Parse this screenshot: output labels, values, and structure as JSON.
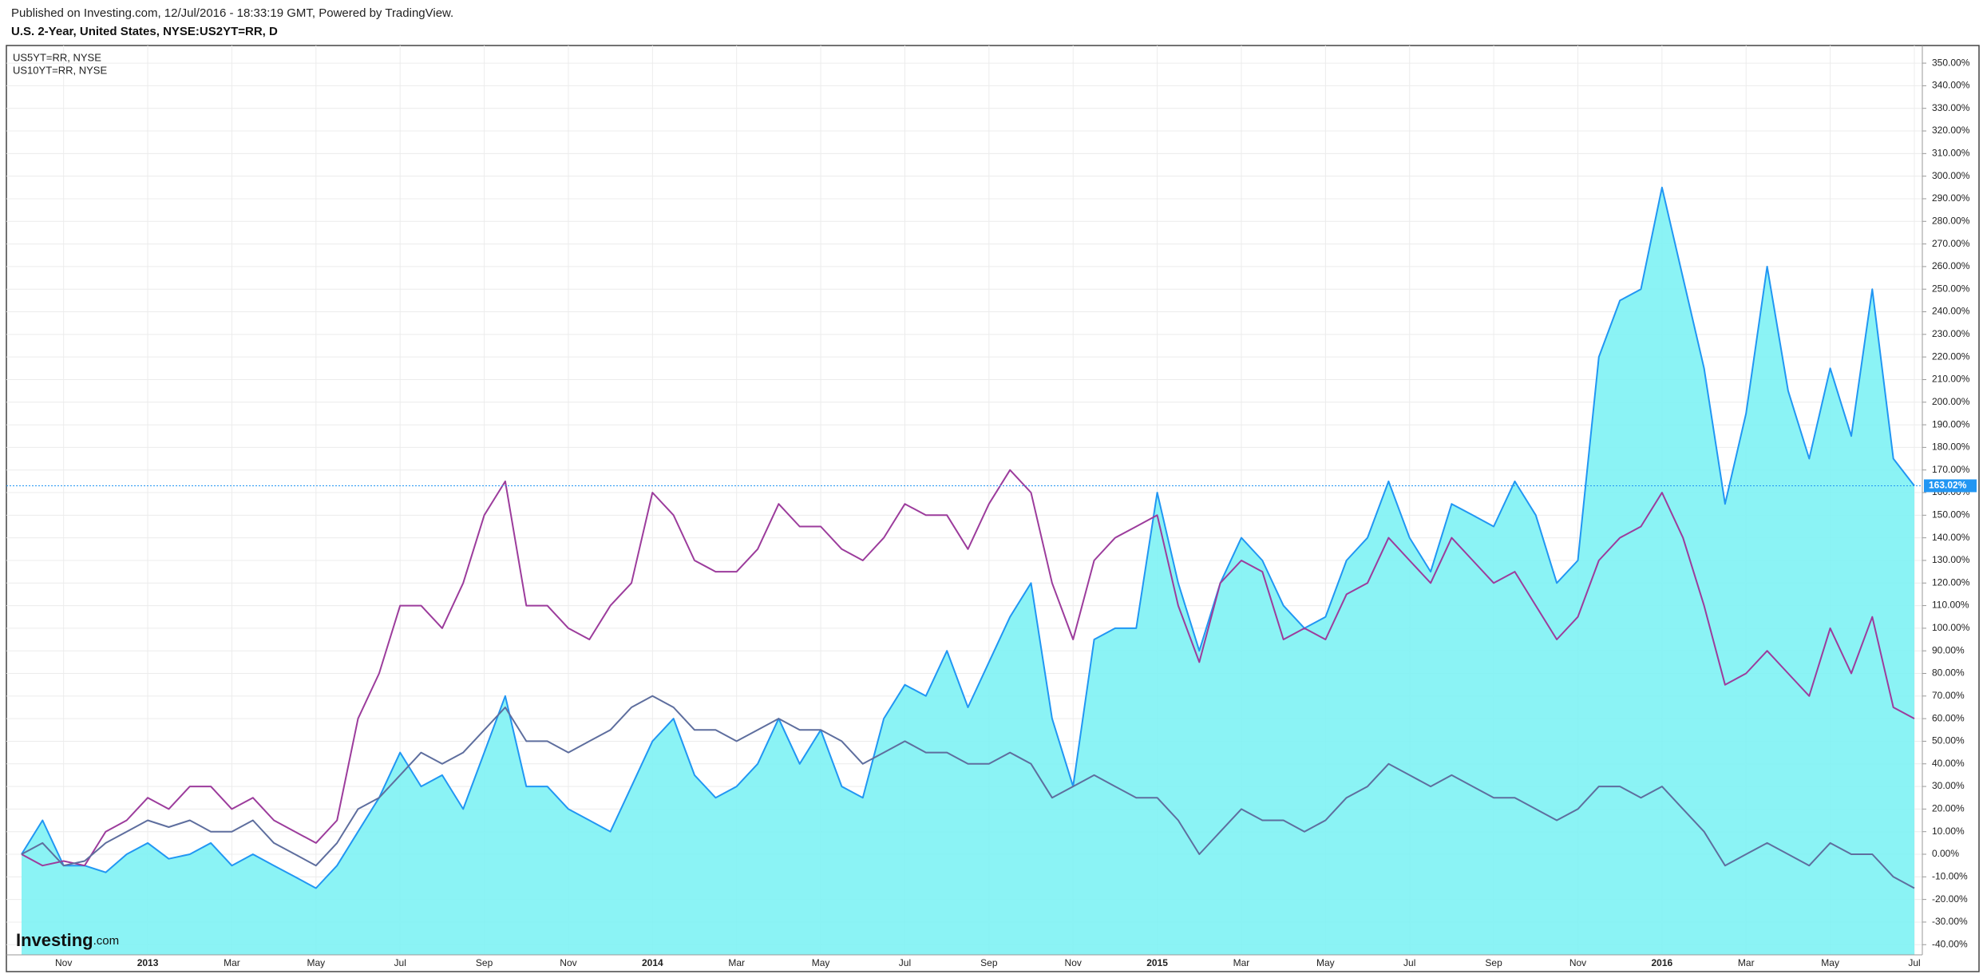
{
  "header": "Published on Investing.com, 12/Jul/2016 - 18:33:19 GMT, Powered by TradingView.",
  "logo": {
    "name": "Investing",
    "suffix": ".com"
  },
  "chart_data": {
    "type": "line",
    "title": "U.S. 2-Year, United States, NYSE:US2YT=RR, D",
    "categories": [
      null,
      null,
      "Nov",
      null,
      null,
      null,
      "2013",
      null,
      null,
      null,
      "Mar",
      null,
      null,
      null,
      "May",
      null,
      null,
      null,
      "Jul",
      null,
      null,
      null,
      "Sep",
      null,
      null,
      null,
      "Nov",
      null,
      null,
      null,
      "2014",
      null,
      null,
      null,
      "Mar",
      null,
      null,
      null,
      "May",
      null,
      null,
      null,
      "Jul",
      null,
      null,
      null,
      "Sep",
      null,
      null,
      null,
      "Nov",
      null,
      null,
      null,
      "2015",
      null,
      null,
      null,
      "Mar",
      null,
      null,
      null,
      "May",
      null,
      null,
      null,
      "Jul",
      null,
      null,
      null,
      "Sep",
      null,
      null,
      null,
      "Nov",
      null,
      null,
      null,
      "2016",
      null,
      null,
      null,
      "Mar",
      null,
      null,
      null,
      "May",
      null,
      null,
      null,
      "Jul"
    ],
    "series": [
      {
        "color": "#2196f3",
        "fill": "#7ef2f4",
        "area": true,
        "values": [
          0,
          15,
          -5,
          -5,
          -8,
          0,
          5,
          -2,
          0,
          5,
          -5,
          0,
          -5,
          -10,
          -15,
          -5,
          10,
          25,
          45,
          30,
          35,
          20,
          45,
          70,
          30,
          30,
          20,
          15,
          10,
          30,
          50,
          60,
          35,
          25,
          30,
          40,
          60,
          40,
          55,
          30,
          25,
          60,
          75,
          70,
          90,
          65,
          85,
          105,
          120,
          60,
          30,
          95,
          100,
          100,
          160,
          120,
          90,
          120,
          140,
          130,
          110,
          100,
          105,
          130,
          140,
          165,
          140,
          125,
          155,
          150,
          145,
          165,
          150,
          120,
          130,
          220,
          245,
          250,
          295,
          255,
          215,
          155,
          195,
          260,
          205,
          175,
          215,
          185,
          250,
          175,
          163
        ]
      },
      {
        "name": "US5YT=RR, NYSE",
        "color": "#9c3c9c",
        "values": [
          0,
          -5,
          -3,
          -5,
          10,
          15,
          25,
          20,
          30,
          30,
          20,
          25,
          15,
          10,
          5,
          15,
          60,
          80,
          110,
          110,
          100,
          120,
          150,
          165,
          110,
          110,
          100,
          95,
          110,
          120,
          160,
          150,
          130,
          125,
          125,
          135,
          155,
          145,
          145,
          135,
          130,
          140,
          155,
          150,
          150,
          135,
          155,
          170,
          160,
          120,
          95,
          130,
          140,
          145,
          150,
          110,
          85,
          120,
          130,
          125,
          95,
          100,
          95,
          115,
          120,
          140,
          130,
          120,
          140,
          130,
          120,
          125,
          110,
          95,
          105,
          130,
          140,
          145,
          160,
          140,
          110,
          75,
          80,
          90,
          80,
          70,
          100,
          80,
          105,
          65,
          60
        ]
      },
      {
        "name": "US10YT=RR, NYSE",
        "color": "#5e6e9e",
        "values": [
          0,
          5,
          -5,
          -3,
          5,
          10,
          15,
          12,
          15,
          10,
          10,
          15,
          5,
          0,
          -5,
          5,
          20,
          25,
          35,
          45,
          40,
          45,
          55,
          65,
          50,
          50,
          45,
          50,
          55,
          65,
          70,
          65,
          55,
          55,
          50,
          55,
          60,
          55,
          55,
          50,
          40,
          45,
          50,
          45,
          45,
          40,
          40,
          45,
          40,
          25,
          30,
          35,
          30,
          25,
          25,
          15,
          0,
          10,
          20,
          15,
          15,
          10,
          15,
          25,
          30,
          40,
          35,
          30,
          35,
          30,
          25,
          25,
          20,
          15,
          20,
          30,
          30,
          25,
          30,
          20,
          10,
          -5,
          0,
          5,
          0,
          -5,
          5,
          0,
          0,
          -10,
          -15
        ]
      }
    ],
    "last_price": {
      "value": 163.02,
      "label": "163.02%",
      "color": "#2196f3"
    },
    "ylim": [
      -44.5,
      357.8
    ],
    "yticks": [
      {
        "value": -40,
        "label": "-40.00%"
      },
      {
        "value": -30,
        "label": "-30.00%"
      },
      {
        "value": -20,
        "label": "-20.00%"
      },
      {
        "value": -10,
        "label": "-10.00%"
      },
      {
        "value": 0,
        "label": "0.00%"
      },
      {
        "value": 10,
        "label": "10.00%"
      },
      {
        "value": 20,
        "label": "20.00%"
      },
      {
        "value": 30,
        "label": "30.00%"
      },
      {
        "value": 40,
        "label": "40.00%"
      },
      {
        "value": 50,
        "label": "50.00%"
      },
      {
        "value": 60,
        "label": "60.00%"
      },
      {
        "value": 70,
        "label": "70.00%"
      },
      {
        "value": 80,
        "label": "80.00%"
      },
      {
        "value": 90,
        "label": "90.00%"
      },
      {
        "value": 100,
        "label": "100.00%"
      },
      {
        "value": 110,
        "label": "110.00%"
      },
      {
        "value": 120,
        "label": "120.00%"
      },
      {
        "value": 130,
        "label": "130.00%"
      },
      {
        "value": 140,
        "label": "140.00%"
      },
      {
        "value": 150,
        "label": "150.00%"
      },
      {
        "value": 160,
        "label": "160.00%"
      },
      {
        "value": 170,
        "label": "170.00%"
      },
      {
        "value": 180,
        "label": "180.00%"
      },
      {
        "value": 190,
        "label": "190.00%"
      },
      {
        "value": 200,
        "label": "200.00%"
      },
      {
        "value": 210,
        "label": "210.00%"
      },
      {
        "value": 220,
        "label": "220.00%"
      },
      {
        "value": 230,
        "label": "230.00%"
      },
      {
        "value": 240,
        "label": "240.00%"
      },
      {
        "value": 250,
        "label": "250.00%"
      },
      {
        "value": 260,
        "label": "260.00%"
      },
      {
        "value": 270,
        "label": "270.00%"
      },
      {
        "value": 280,
        "label": "280.00%"
      },
      {
        "value": 290,
        "label": "290.00%"
      },
      {
        "value": 300,
        "label": "300.00%"
      },
      {
        "value": 310,
        "label": "310.00%"
      },
      {
        "value": 320,
        "label": "320.00%"
      },
      {
        "value": 330,
        "label": "330.00%"
      },
      {
        "value": 340,
        "label": "340.00%"
      },
      {
        "value": 350,
        "label": "350.00%"
      }
    ],
    "grid": true
  }
}
